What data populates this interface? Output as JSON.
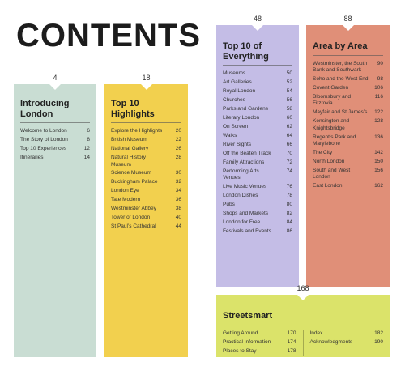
{
  "title": "CONTENTS",
  "sections": {
    "introducing": {
      "page": "4",
      "heading": "Introducing London",
      "color": "#c9ddd3",
      "items": [
        {
          "label": "Welcome to London",
          "page": "6"
        },
        {
          "label": "The Story of London",
          "page": "8"
        },
        {
          "label": "Top 10 Experiences",
          "page": "12"
        },
        {
          "label": "Itineraries",
          "page": "14"
        }
      ]
    },
    "highlights": {
      "page": "18",
      "heading": "Top 10 Highlights",
      "color": "#f2d04e",
      "items": [
        {
          "label": "Explore the Highlights",
          "page": "20"
        },
        {
          "label": "British Museum",
          "page": "22"
        },
        {
          "label": "National Gallery",
          "page": "26"
        },
        {
          "label": "Natural History Museum",
          "page": "28"
        },
        {
          "label": "Science Museum",
          "page": "30"
        },
        {
          "label": "Buckingham Palace",
          "page": "32"
        },
        {
          "label": "London Eye",
          "page": "34"
        },
        {
          "label": "Tate Modern",
          "page": "36"
        },
        {
          "label": "Westminster Abbey",
          "page": "38"
        },
        {
          "label": "Tower of London",
          "page": "40"
        },
        {
          "label": "St Paul’s Cathedral",
          "page": "44"
        }
      ]
    },
    "everything": {
      "page": "48",
      "heading": "Top 10 of Everything",
      "color": "#c4bde6",
      "items": [
        {
          "label": "Museums",
          "page": "50"
        },
        {
          "label": "Art Galleries",
          "page": "52"
        },
        {
          "label": "Royal London",
          "page": "54"
        },
        {
          "label": "Churches",
          "page": "56"
        },
        {
          "label": "Parks and Gardens",
          "page": "58"
        },
        {
          "label": "Literary London",
          "page": "60"
        },
        {
          "label": "On Screen",
          "page": "62"
        },
        {
          "label": "Walks",
          "page": "64"
        },
        {
          "label": "River Sights",
          "page": "66"
        },
        {
          "label": "Off the Beaten Track",
          "page": "70"
        },
        {
          "label": "Family Attractions",
          "page": "72"
        },
        {
          "label": "Performing Arts Venues",
          "page": "74"
        },
        {
          "label": "Live Music Venues",
          "page": "76"
        },
        {
          "label": "London Dishes",
          "page": "78"
        },
        {
          "label": "Pubs",
          "page": "80"
        },
        {
          "label": "Shops and Markets",
          "page": "82"
        },
        {
          "label": "London for Free",
          "page": "84"
        },
        {
          "label": "Festivals and Events",
          "page": "86"
        }
      ]
    },
    "area": {
      "page": "88",
      "heading": "Area by Area",
      "color": "#e08f78",
      "items": [
        {
          "label": "Westminster, the South Bank and Southwark",
          "page": "90"
        },
        {
          "label": "Soho and the West End",
          "page": "98"
        },
        {
          "label": "Covent Garden",
          "page": "106"
        },
        {
          "label": "Bloomsbury and Fitzrovia",
          "page": "116"
        },
        {
          "label": "Mayfair and St James’s",
          "page": "122"
        },
        {
          "label": "Kensington and Knightsbridge",
          "page": "128"
        },
        {
          "label": "Regent’s Park and Marylebone",
          "page": "136"
        },
        {
          "label": "The City",
          "page": "142"
        },
        {
          "label": "North London",
          "page": "150"
        },
        {
          "label": "South and West London",
          "page": "156"
        },
        {
          "label": "East London",
          "page": "162"
        }
      ]
    },
    "streetsmart": {
      "page": "168",
      "heading": "Streetsmart",
      "color": "#dbe36a",
      "items_left": [
        {
          "label": "Getting Around",
          "page": "170"
        },
        {
          "label": "Practical Information",
          "page": "174"
        },
        {
          "label": "Places to Stay",
          "page": "178"
        }
      ],
      "items_right": [
        {
          "label": "Index",
          "page": "182"
        },
        {
          "label": "Acknowledgments",
          "page": "190"
        }
      ]
    }
  }
}
